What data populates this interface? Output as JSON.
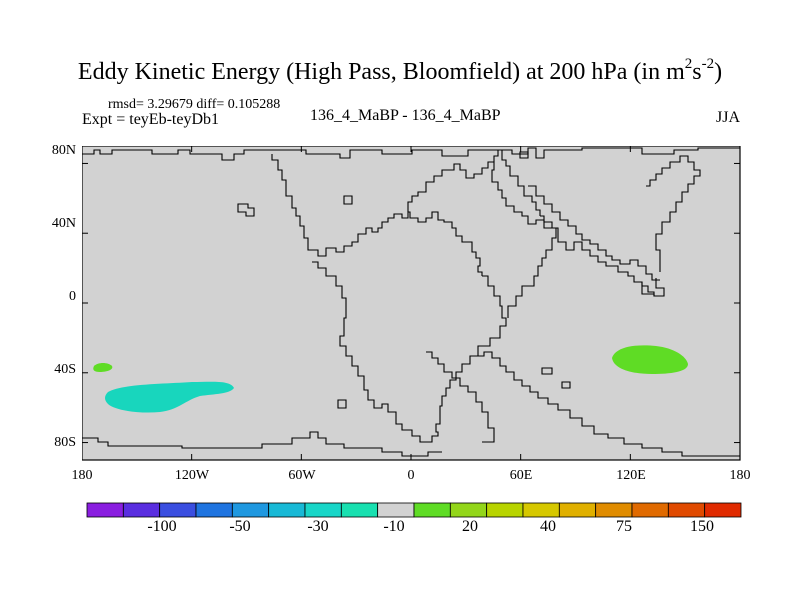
{
  "title": {
    "main": "Eddy Kinetic Energy (High Pass, Bloomfield) at 200 hPa (in m",
    "exp1": "2",
    "mid": "s",
    "exp2": "-2",
    "close": ")"
  },
  "stats_line": "rmsd= 3.29679 diff= 0.105288",
  "expt_label": "Expt = teyEb-teyDb1",
  "subtitle": "136_4_MaBP - 136_4_MaBP",
  "season": "JJA",
  "axes": {
    "y_ticks": [
      "80N",
      "40N",
      "0",
      "40S",
      "80S"
    ],
    "y_values": [
      80,
      40,
      0,
      -40,
      -80
    ],
    "x_ticks": [
      "180",
      "120W",
      "60W",
      "0",
      "60E",
      "120E",
      "180"
    ],
    "x_values": [
      -180,
      -120,
      -60,
      0,
      60,
      120,
      180
    ],
    "lon_range": [
      -180,
      180
    ],
    "lat_range": [
      -90,
      90
    ]
  },
  "map_data": {
    "background_color": "#d2d2d2",
    "anomaly_regions": [
      {
        "label": "Southern Pacific anomaly",
        "category": "-10 to -30",
        "color": "#18d6bd",
        "center_lon": -135,
        "center_lat": -55
      },
      {
        "label": "small anomaly near 175W",
        "category": "10 to 20",
        "color": "#5fdc25",
        "center_lon": -165,
        "center_lat": -38
      },
      {
        "label": "Australian/Indian Ocean anomaly",
        "category": "10 to 20",
        "color": "#5fdc25",
        "center_lon": 128,
        "center_lat": -35
      }
    ]
  },
  "colorbar": {
    "colors": [
      "#8a1ee0",
      "#5a2ee0",
      "#3a4ee0",
      "#1f74e0",
      "#1f98e0",
      "#18b9d6",
      "#18d6c8",
      "#18e0b0",
      "#d2d2d2",
      "#5fdc25",
      "#93d61a",
      "#b8d400",
      "#d6c800",
      "#e0b000",
      "#e08c00",
      "#e06a00",
      "#e04a00",
      "#e02a00"
    ],
    "labels": [
      "-100",
      "-50",
      "-30",
      "-10",
      "20",
      "40",
      "75",
      "150"
    ]
  }
}
